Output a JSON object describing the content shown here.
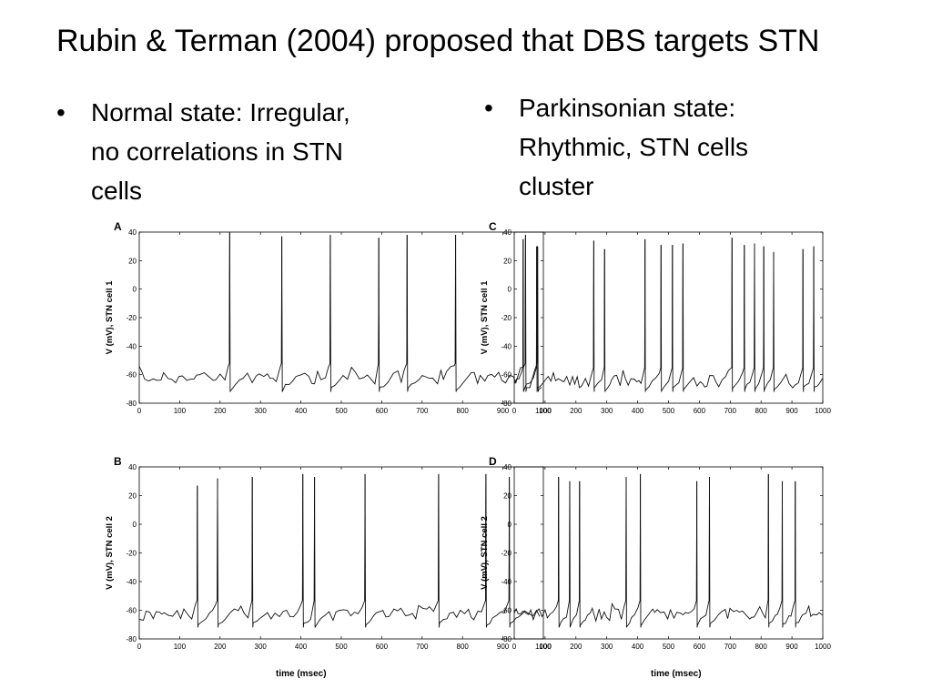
{
  "slide": {
    "title": "Rubin & Terman (2004) proposed that DBS targets STN",
    "bullets": [
      {
        "lines": [
          "Normal state: Irregular,",
          "no correlations in STN",
          "cells"
        ]
      },
      {
        "lines": [
          "Parkinsonian state:",
          "Rhythmic, STN cells",
          "cluster"
        ]
      }
    ],
    "bullet_char": "•"
  },
  "chart_data": [
    {
      "type": "line",
      "panel": "A",
      "ylabel": "V (mV), STN cell 1",
      "xlabel": "",
      "xlim": [
        0,
        1000
      ],
      "ylim": [
        -80,
        40
      ],
      "x_ticks": [
        "0",
        "100",
        "200",
        "300",
        "400",
        "500",
        "600",
        "700",
        "800",
        "900",
        "1000"
      ],
      "y_ticks": [
        "40",
        "20",
        "0",
        "-20",
        "-40",
        "-60",
        "-80"
      ],
      "spike_times_msec": [
        223,
        352,
        472,
        592,
        662,
        782,
        955,
        985
      ],
      "spike_peaks_mV": [
        40,
        37,
        38,
        36,
        38,
        38,
        38,
        30
      ],
      "baseline_mV": -62
    },
    {
      "type": "line",
      "panel": "B",
      "ylabel": "V (mV), STN cell 2",
      "xlabel": "time (msec)",
      "xlim": [
        0,
        1000
      ],
      "ylim": [
        -80,
        40
      ],
      "x_ticks": [
        "0",
        "100",
        "200",
        "300",
        "400",
        "500",
        "600",
        "700",
        "800",
        "900",
        "1000"
      ],
      "y_ticks": [
        "40",
        "20",
        "0",
        "-20",
        "-40",
        "-60",
        "-80"
      ],
      "spike_times_msec": [
        143,
        193,
        279,
        404,
        433,
        558,
        740,
        857,
        915
      ],
      "spike_peaks_mV": [
        27,
        32,
        33,
        35,
        33,
        35,
        35,
        35,
        33
      ],
      "baseline_mV": -63
    },
    {
      "type": "line",
      "panel": "C",
      "ylabel": "V (mV), STN cell 1",
      "xlabel": "",
      "xlim": [
        0,
        1000
      ],
      "ylim": [
        -80,
        40
      ],
      "x_ticks": [
        "0",
        "100",
        "200",
        "300",
        "400",
        "500",
        "600",
        "700",
        "800",
        "900",
        "1000"
      ],
      "y_ticks": [
        "40",
        "20",
        "0",
        "-20",
        "-40",
        "-60",
        "-80"
      ],
      "spike_times_msec": [
        28,
        72,
        257,
        292,
        423,
        475,
        512,
        546,
        705,
        745,
        778,
        808,
        840,
        935,
        970
      ],
      "spike_peaks_mV": [
        35,
        30,
        34,
        28,
        35,
        31,
        31,
        32,
        36,
        31,
        32,
        30,
        26,
        28,
        30
      ],
      "baseline_mV": -65
    },
    {
      "type": "line",
      "panel": "D",
      "ylabel": "V (mV), STN cell 2",
      "xlabel": "time (msec)",
      "xlim": [
        0,
        1000
      ],
      "ylim": [
        -80,
        40
      ],
      "x_ticks": [
        "0",
        "100",
        "200",
        "300",
        "400",
        "500",
        "600",
        "700",
        "800",
        "900",
        "1000"
      ],
      "y_ticks": [
        "40",
        "20",
        "0",
        "-20",
        "-40",
        "-60",
        "-80"
      ],
      "spike_times_msec": [
        143,
        179,
        211,
        362,
        408,
        591,
        632,
        823,
        868,
        910
      ],
      "spike_peaks_mV": [
        33,
        30,
        30,
        33,
        35,
        30,
        33,
        35,
        30,
        30
      ],
      "baseline_mV": -63
    }
  ]
}
